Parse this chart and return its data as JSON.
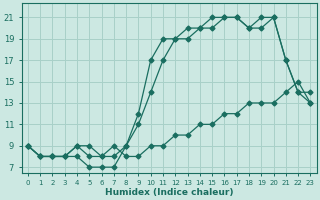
{
  "xlabel": "Humidex (Indice chaleur)",
  "bg_color": "#cce8e2",
  "grid_color": "#a8d0c8",
  "line_color": "#1a6e60",
  "xlim": [
    -0.5,
    23.5
  ],
  "ylim": [
    6.5,
    22.3
  ],
  "xticks": [
    0,
    1,
    2,
    3,
    4,
    5,
    6,
    7,
    8,
    9,
    10,
    11,
    12,
    13,
    14,
    15,
    16,
    17,
    18,
    19,
    20,
    21,
    22,
    23
  ],
  "yticks": [
    7,
    9,
    11,
    13,
    15,
    17,
    19,
    21
  ],
  "line1_y": [
    9,
    8,
    8,
    8,
    8,
    7,
    7,
    7,
    9,
    12,
    17,
    19,
    19,
    20,
    20,
    21,
    21,
    21,
    20,
    21,
    21,
    17,
    14,
    14
  ],
  "line2_y": [
    9,
    8,
    8,
    8,
    9,
    9,
    8,
    9,
    8,
    8,
    9,
    9,
    10,
    10,
    11,
    11,
    12,
    12,
    13,
    13,
    13,
    14,
    15,
    13
  ],
  "line3_y": [
    9,
    8,
    8,
    8,
    9,
    8,
    8,
    8,
    9,
    11,
    14,
    17,
    19,
    19,
    20,
    20,
    21,
    21,
    20,
    20,
    21,
    17,
    14,
    13
  ]
}
